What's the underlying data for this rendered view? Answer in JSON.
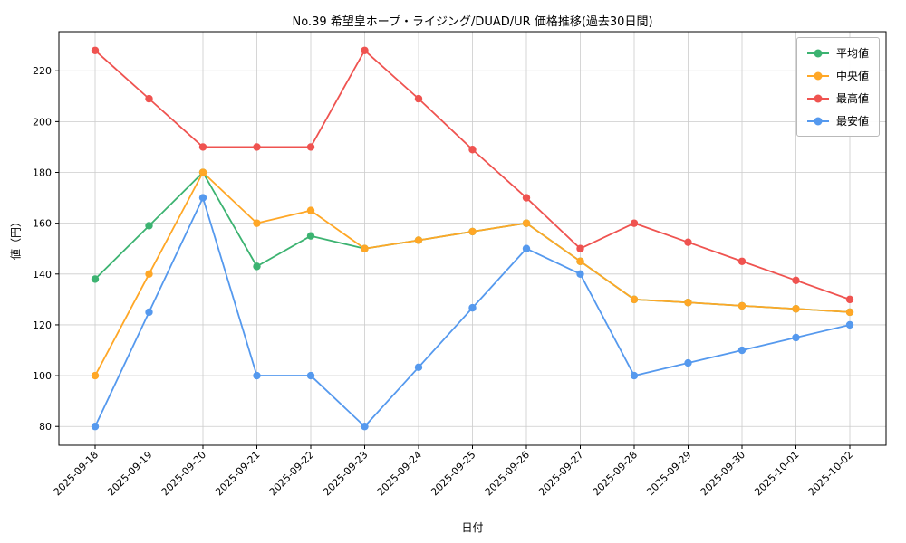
{
  "chart": {
    "title": "No.39 希望皇ホープ・ライジング/DUAD/UR 価格推移(過去30日間)",
    "xlabel": "日付",
    "ylabel": "値（円）"
  },
  "chart_data": {
    "type": "line",
    "title": "No.39 希望皇ホープ・ライジング/DUAD/UR 価格推移(過去30日間)",
    "xlabel": "日付",
    "ylabel": "値（円）",
    "grid": true,
    "legend_position": "upper right",
    "categories": [
      "2025-09-18",
      "2025-09-19",
      "2025-09-20",
      "2025-09-21",
      "2025-09-22",
      "2025-09-23",
      "2025-09-24",
      "2025-09-25",
      "2025-09-26",
      "2025-09-27",
      "2025-09-28",
      "2025-09-29",
      "2025-09-30",
      "2025-10-01",
      "2025-10-02"
    ],
    "yticks": [
      80,
      100,
      120,
      140,
      160,
      180,
      200,
      220
    ],
    "ylim": [
      72.6,
      235.4
    ],
    "series": [
      {
        "name": "平均値",
        "color": "#3cb371",
        "values": [
          138,
          159,
          180,
          143,
          155,
          150,
          153.3,
          156.7,
          160,
          145,
          130,
          128.8,
          127.5,
          126.3,
          125
        ]
      },
      {
        "name": "中央値",
        "color": "#ffa726",
        "values": [
          100,
          140,
          180,
          160,
          165,
          150,
          153.3,
          156.7,
          160,
          145,
          130,
          128.8,
          127.5,
          126.3,
          125
        ]
      },
      {
        "name": "最高値",
        "color": "#ef5350",
        "values": [
          228,
          209,
          190,
          190,
          190,
          228,
          209,
          189,
          170,
          150,
          160,
          152.5,
          145,
          137.5,
          130
        ]
      },
      {
        "name": "最安値",
        "color": "#5599ee",
        "values": [
          80,
          125,
          170,
          100,
          100,
          80,
          103.3,
          126.7,
          150,
          140,
          100,
          105,
          110,
          115,
          120
        ]
      }
    ]
  }
}
